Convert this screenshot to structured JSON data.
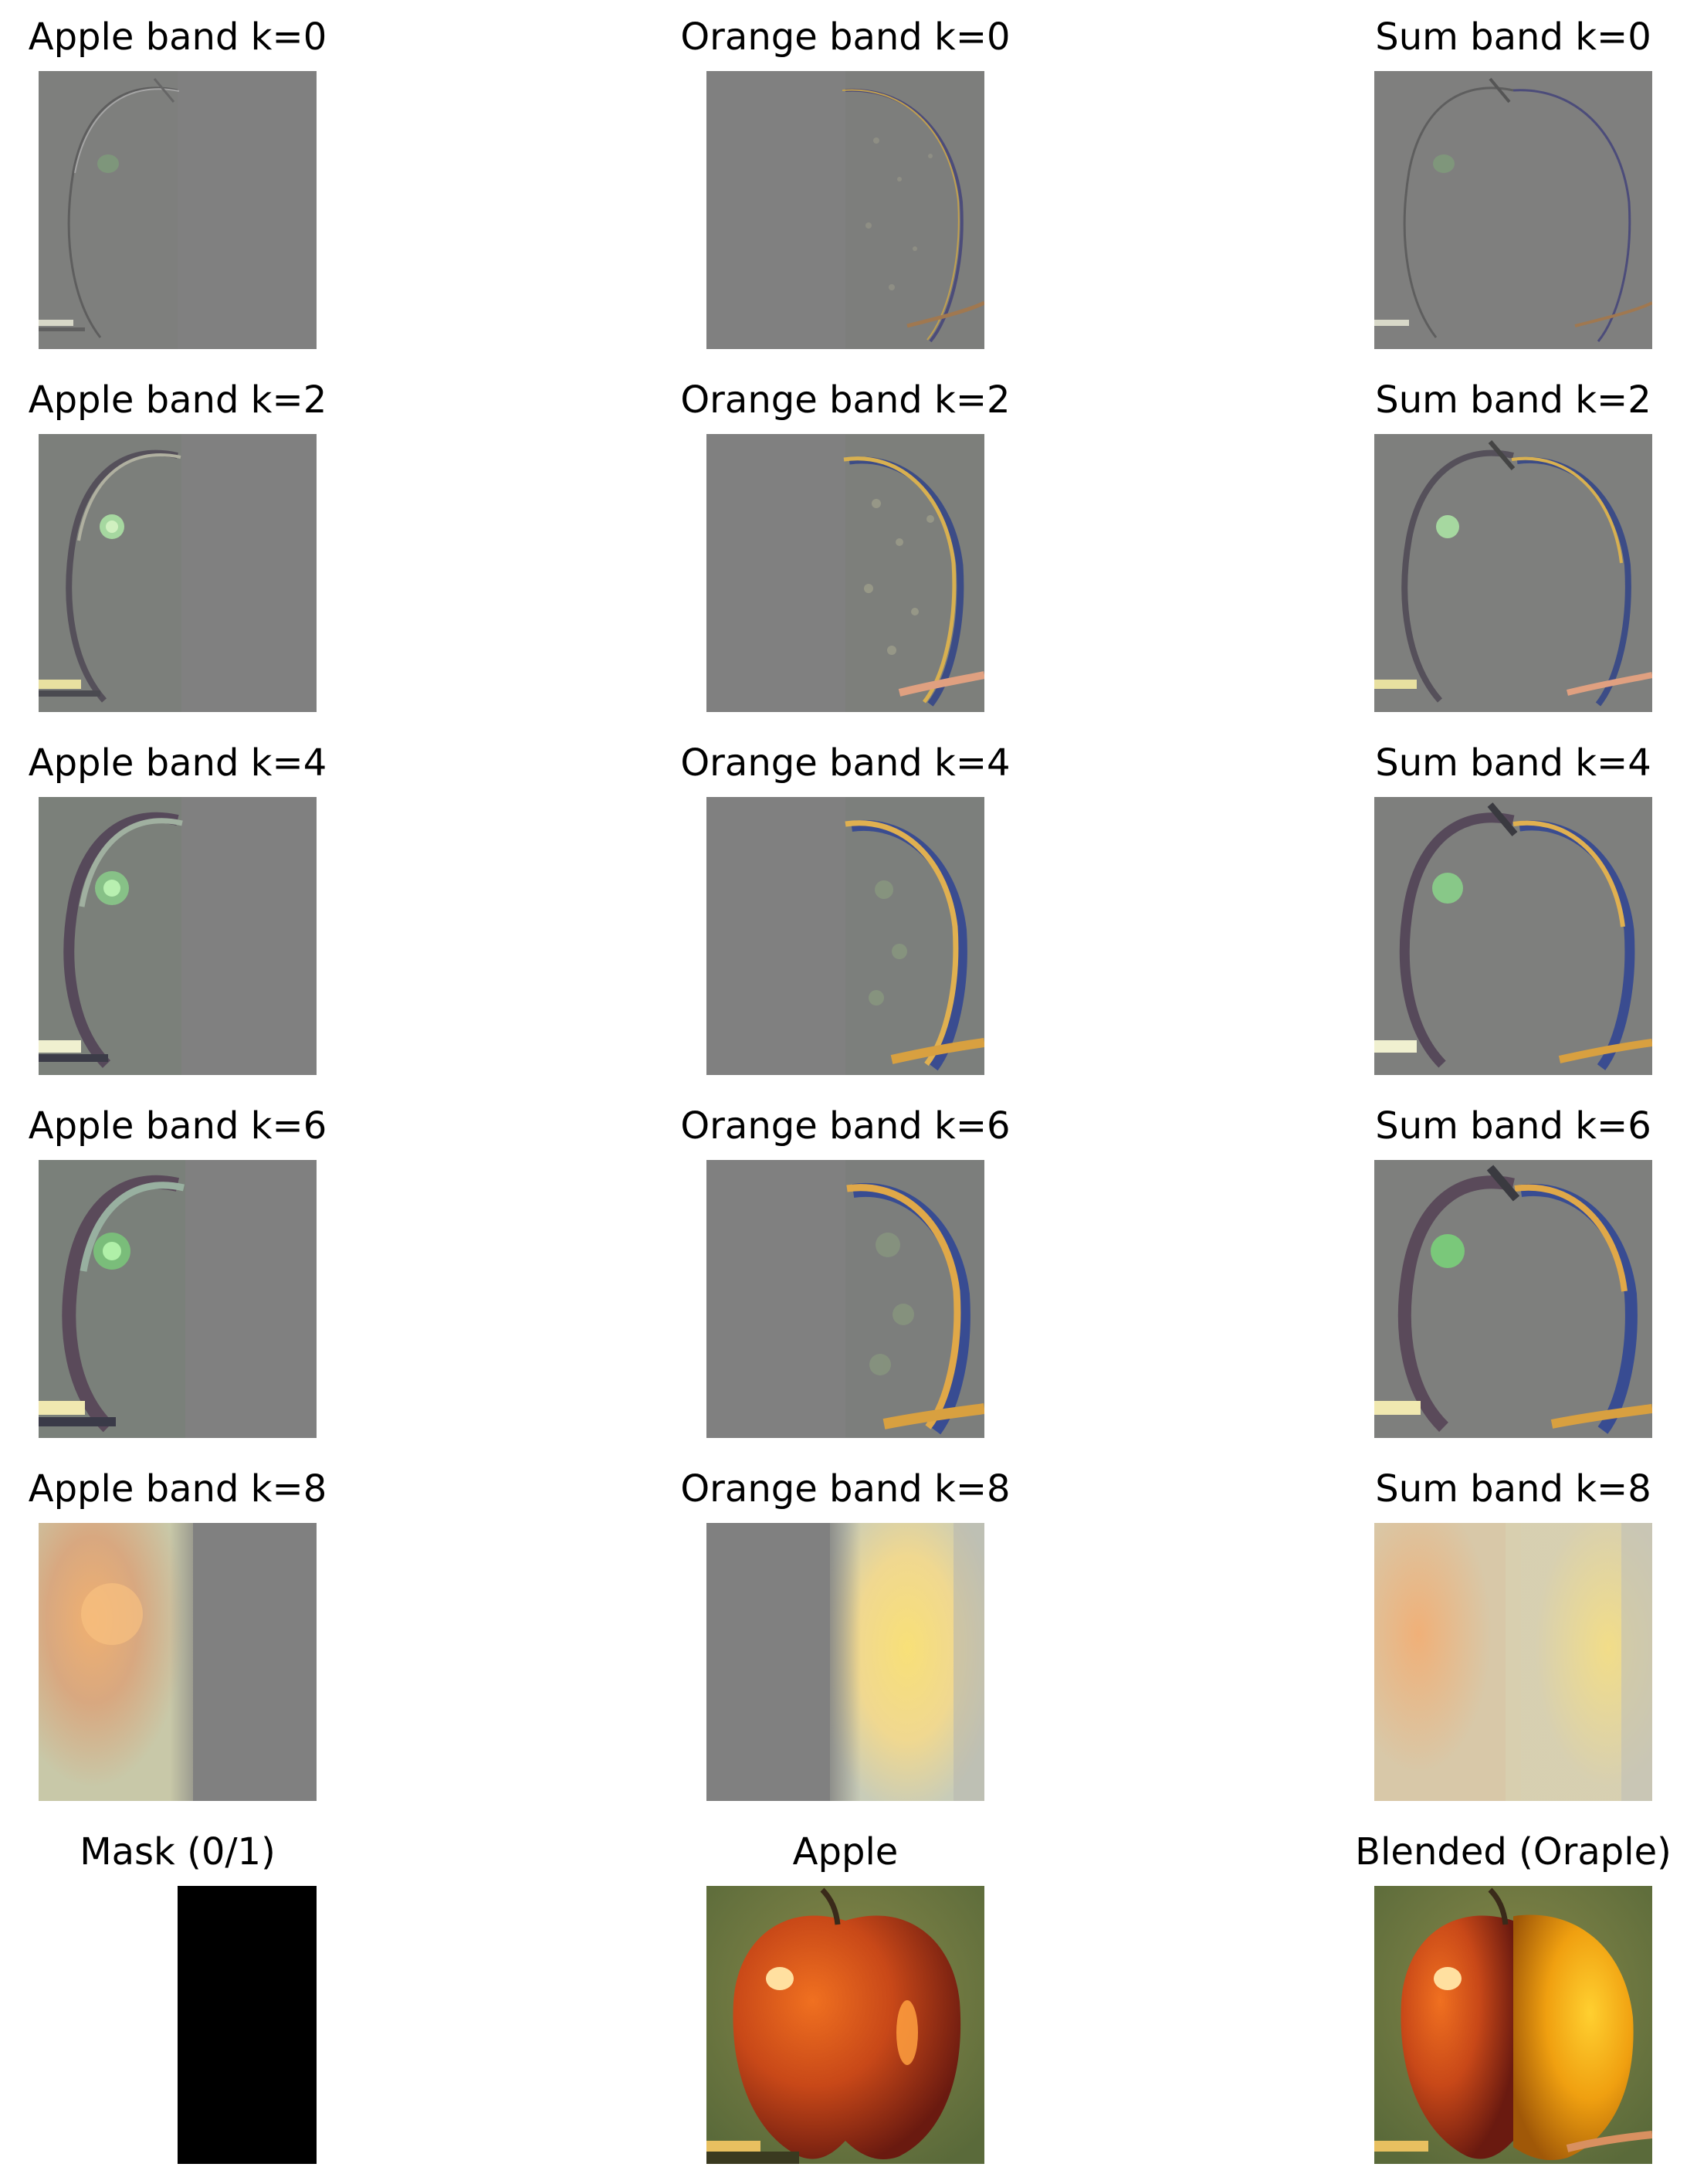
{
  "rows": [
    {
      "apple": "Apple band k=0",
      "orange": "Orange band k=0",
      "sum": "Sum band k=0"
    },
    {
      "apple": "Apple band k=2",
      "orange": "Orange band k=2",
      "sum": "Sum band k=2"
    },
    {
      "apple": "Apple band k=4",
      "orange": "Orange band k=4",
      "sum": "Sum band k=4"
    },
    {
      "apple": "Apple band k=6",
      "orange": "Orange band k=6",
      "sum": "Sum band k=6"
    },
    {
      "apple": "Apple band k=8",
      "orange": "Orange band k=8",
      "sum": "Sum band k=8"
    }
  ],
  "bottom": {
    "mask": "Mask (0/1)",
    "apple": "Apple",
    "blended": "Blended (Oraple)"
  },
  "colors": {
    "band_gray": "#808080",
    "mask_black": "#000000",
    "apple_red": "#c8401a",
    "orange_yellow": "#f0a020"
  }
}
